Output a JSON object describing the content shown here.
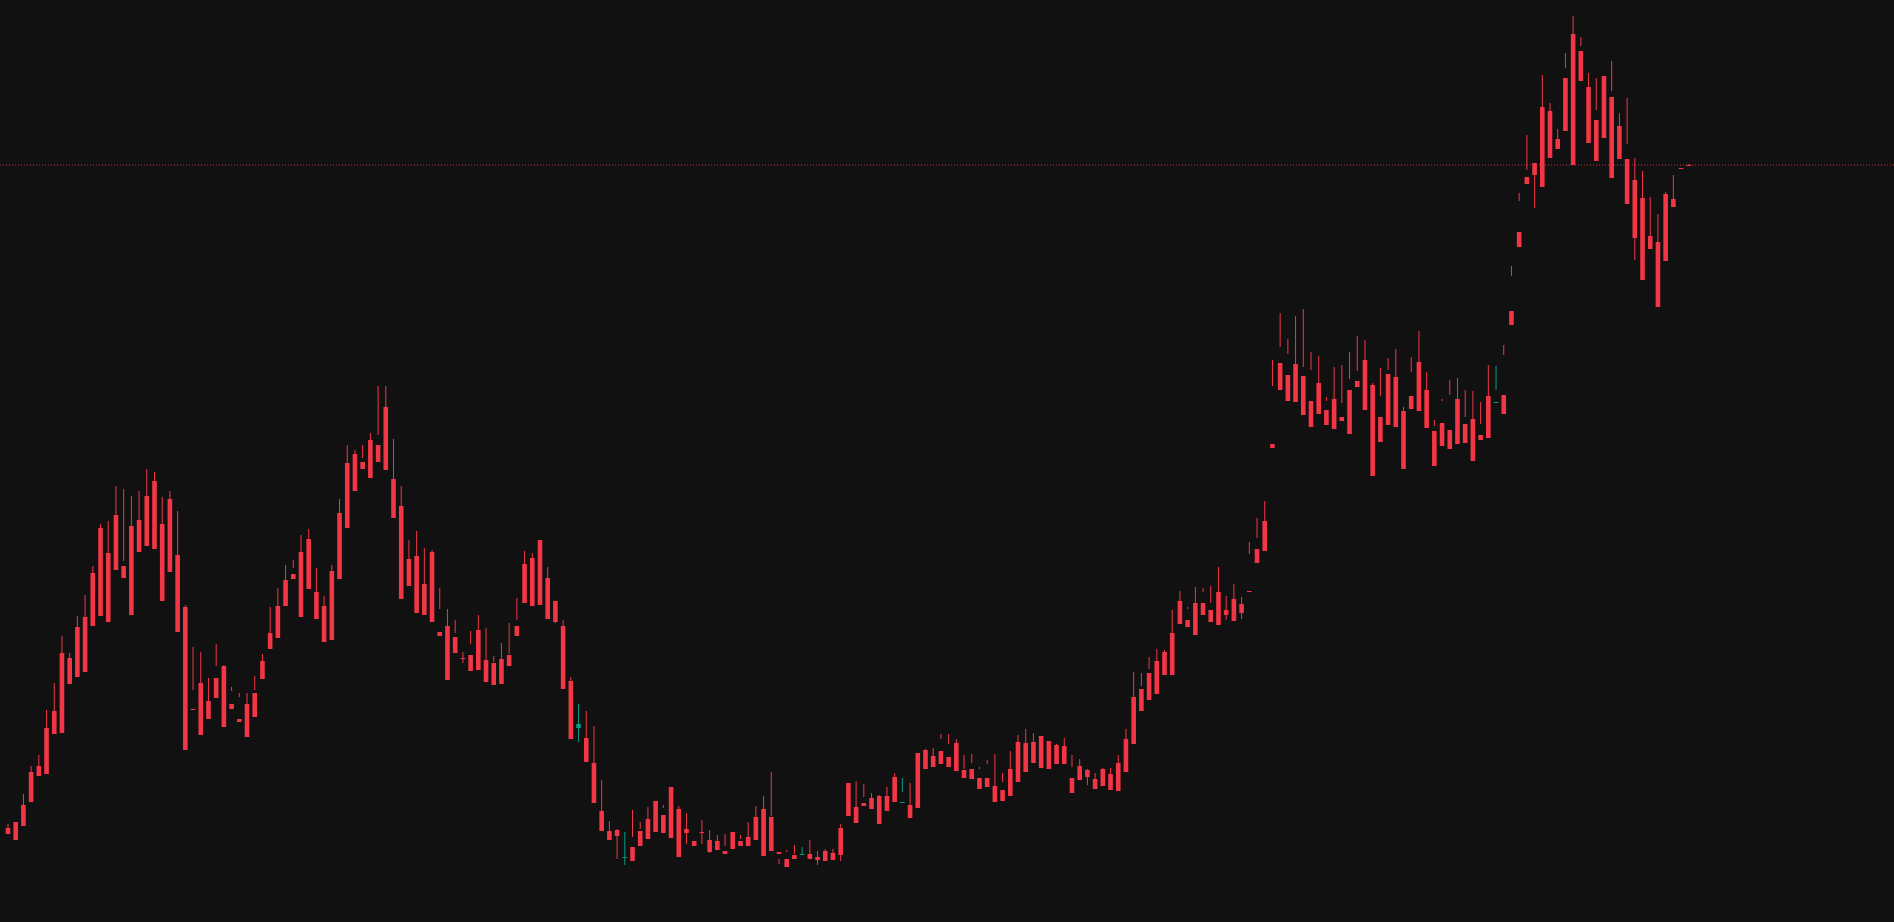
{
  "colors": {
    "background": "#111112",
    "up": "#089981",
    "down": "#f23645",
    "price_line": "#f23645"
  },
  "chart_data": {
    "type": "candlestick",
    "title": "",
    "xlabel": "",
    "ylabel": "",
    "y_range": [
      0,
      922
    ],
    "grid": false,
    "legend": "none",
    "price_line": {
      "value": 757,
      "style": "dotted"
    },
    "candles": [
      [
        94,
        98,
        90,
        88
      ],
      [
        100,
        99,
        93,
        82
      ],
      [
        117,
        128,
        99,
        96
      ],
      [
        150,
        156,
        127,
        120
      ],
      [
        156,
        167,
        153,
        146
      ],
      [
        194,
        212,
        157,
        148
      ],
      [
        211,
        239,
        198,
        188
      ],
      [
        269,
        286,
        212,
        189
      ],
      [
        264,
        269,
        251,
        238
      ],
      [
        295,
        306,
        264,
        245
      ],
      [
        305,
        327,
        294,
        250
      ],
      [
        349,
        356,
        316,
        296
      ],
      [
        394,
        398,
        352,
        306
      ],
      [
        369,
        401,
        343,
        300
      ],
      [
        407,
        436,
        372,
        352
      ],
      [
        356,
        433,
        361,
        344
      ],
      [
        396,
        426,
        363,
        307
      ],
      [
        402,
        431,
        395,
        370
      ],
      [
        426,
        453,
        417,
        376
      ],
      [
        441,
        450,
        405,
        373
      ],
      [
        398,
        425,
        359,
        321
      ],
      [
        423,
        431,
        374,
        350
      ],
      [
        367,
        411,
        332,
        290
      ],
      [
        315,
        317,
        190,
        172
      ],
      [
        213,
        275,
        232,
        212
      ],
      [
        239,
        270,
        237,
        187
      ],
      [
        221,
        244,
        215,
        203
      ],
      [
        244,
        278,
        256,
        224
      ],
      [
        256,
        257,
        224,
        195
      ],
      [
        218,
        235,
        231,
        213
      ],
      [
        203,
        229,
        225,
        200
      ],
      [
        218,
        229,
        212,
        185
      ],
      [
        229,
        246,
        232,
        205
      ],
      [
        261,
        268,
        245,
        243
      ],
      [
        289,
        315,
        281,
        273
      ],
      [
        316,
        334,
        308,
        284
      ],
      [
        342,
        357,
        327,
        316
      ],
      [
        348,
        362,
        354,
        343
      ],
      [
        370,
        387,
        363,
        305
      ],
      [
        383,
        393,
        349,
        333
      ],
      [
        330,
        354,
        318,
        303
      ],
      [
        316,
        326,
        292,
        280
      ],
      [
        351,
        357,
        308,
        282
      ],
      [
        409,
        423,
        354,
        343
      ],
      [
        459,
        477,
        404,
        394
      ],
      [
        468,
        472,
        456,
        431
      ],
      [
        460,
        477,
        464,
        453
      ],
      [
        482,
        489,
        458,
        444
      ],
      [
        477,
        536,
        487,
        460
      ],
      [
        515,
        536,
        468,
        452
      ],
      [
        443,
        483,
        442,
        404
      ],
      [
        416,
        436,
        364,
        323
      ],
      [
        363,
        382,
        356,
        336
      ],
      [
        366,
        391,
        324,
        309
      ],
      [
        338,
        374,
        326,
        307
      ],
      [
        370,
        372,
        324,
        300
      ],
      [
        290,
        313,
        334,
        286
      ],
      [
        296,
        313,
        285,
        242
      ],
      [
        285,
        302,
        289,
        269
      ],
      [
        264,
        270,
        259,
        263
      ],
      [
        267,
        291,
        278,
        251
      ],
      [
        292,
        307,
        269,
        252
      ],
      [
        262,
        294,
        253,
        240
      ],
      [
        259,
        266,
        260,
        237
      ],
      [
        263,
        279,
        262,
        238
      ],
      [
        267,
        268,
        299,
        256
      ],
      [
        296,
        324,
        302,
        286
      ],
      [
        358,
        371,
        332,
        319
      ],
      [
        364,
        369,
        325,
        316
      ],
      [
        382,
        369,
        344,
        317
      ],
      [
        344,
        355,
        321,
        303
      ],
      [
        321,
        319,
        299,
        300
      ],
      [
        296,
        302,
        283,
        233
      ],
      [
        241,
        245,
        193,
        183
      ],
      [
        194,
        218,
        180,
        198
      ],
      [
        184,
        211,
        165,
        160
      ],
      [
        159,
        196,
        121,
        119
      ],
      [
        111,
        142,
        100,
        91
      ],
      [
        91,
        101,
        86,
        82
      ],
      [
        92,
        93,
        63,
        86
      ],
      [
        65,
        90,
        57,
        65
      ],
      [
        75,
        112,
        85,
        61
      ],
      [
        91,
        100,
        93,
        76
      ],
      [
        103,
        115,
        100,
        83
      ],
      [
        121,
        121,
        107,
        90
      ],
      [
        107,
        117,
        114,
        89
      ],
      [
        135,
        134,
        107,
        84
      ],
      [
        113,
        116,
        96,
        65
      ],
      [
        93,
        109,
        78,
        89
      ],
      [
        81,
        79,
        80,
        76
      ],
      [
        90,
        102,
        78,
        89
      ],
      [
        82,
        92,
        69,
        70
      ],
      [
        81,
        87,
        74,
        72
      ],
      [
        71,
        88,
        76,
        68
      ],
      [
        90,
        87,
        73,
        73
      ],
      [
        81,
        83,
        87,
        76
      ],
      [
        85,
        100,
        80,
        76
      ],
      [
        105,
        116,
        90,
        82
      ],
      [
        113,
        126,
        103,
        66
      ],
      [
        105,
        150,
        106,
        71
      ],
      [
        70,
        58,
        63,
        68
      ],
      [
        63,
        72,
        70,
        55
      ],
      [
        67,
        77,
        68,
        63
      ],
      [
        67,
        75,
        68,
        68
      ],
      [
        68,
        82,
        66,
        63
      ],
      [
        65,
        71,
        57,
        62
      ],
      [
        71,
        73,
        62,
        61
      ],
      [
        69,
        73,
        62,
        62
      ],
      [
        94,
        98,
        61,
        67
      ],
      [
        139,
        114,
        112,
        106
      ],
      [
        115,
        141,
        108,
        99
      ],
      [
        119,
        138,
        125,
        116
      ],
      [
        124,
        121,
        129,
        113
      ],
      [
        126,
        127,
        120,
        98
      ],
      [
        126,
        135,
        125,
        111
      ],
      [
        145,
        149,
        141,
        120
      ],
      [
        119,
        144,
        130,
        120
      ],
      [
        117,
        139,
        112,
        104
      ],
      [
        169,
        163,
        117,
        114
      ],
      [
        172,
        167,
        173,
        153
      ],
      [
        166,
        161,
        174,
        155
      ],
      [
        171,
        188,
        183,
        158
      ],
      [
        165,
        188,
        178,
        155
      ],
      [
        179,
        183,
        161,
        151
      ],
      [
        152,
        167,
        153,
        144
      ],
      [
        153,
        168,
        159,
        143
      ],
      [
        144,
        155,
        153,
        133
      ],
      [
        144,
        162,
        158,
        135
      ],
      [
        136,
        168,
        133,
        120
      ],
      [
        132,
        149,
        140,
        121
      ],
      [
        153,
        171,
        144,
        126
      ],
      [
        180,
        187,
        162,
        140
      ],
      [
        179,
        193,
        165,
        150
      ],
      [
        180,
        189,
        169,
        159
      ],
      [
        186,
        176,
        170,
        154
      ],
      [
        181,
        180,
        165,
        153
      ],
      [
        177,
        178,
        162,
        158
      ],
      [
        176,
        163,
        184,
        158
      ],
      [
        144,
        167,
        155,
        129
      ],
      [
        156,
        163,
        156,
        142
      ],
      [
        152,
        153,
        137,
        145
      ],
      [
        143,
        149,
        135,
        133
      ],
      [
        153,
        154,
        138,
        136
      ],
      [
        148,
        154,
        146,
        132
      ],
      [
        159,
        167,
        149,
        131
      ],
      [
        183,
        193,
        166,
        150
      ],
      [
        225,
        250,
        209,
        178
      ],
      [
        233,
        249,
        236,
        211
      ],
      [
        249,
        265,
        253,
        222
      ],
      [
        261,
        273,
        259,
        228
      ],
      [
        270,
        268,
        272,
        247
      ],
      [
        289,
        312,
        286,
        247
      ],
      [
        321,
        331,
        300,
        298
      ],
      [
        302,
        315,
        313,
        295
      ],
      [
        319,
        335,
        305,
        287
      ],
      [
        319,
        334,
        330,
        307
      ],
      [
        312,
        336,
        319,
        300
      ],
      [
        330,
        355,
        312,
        297
      ],
      [
        312,
        326,
        302,
        307
      ],
      [
        323,
        338,
        309,
        301
      ],
      [
        318,
        303,
        325,
        309
      ],
      [
        331,
        380,
        368,
        330
      ],
      [
        373,
        404,
        384,
        359
      ],
      [
        401,
        421,
        392,
        371
      ],
      [
        478,
        536,
        562,
        474
      ],
      [
        559,
        609,
        575,
        532
      ],
      [
        547,
        583,
        568,
        521
      ],
      [
        558,
        606,
        547,
        520
      ],
      [
        546,
        613,
        555,
        507
      ],
      [
        521,
        570,
        552,
        495
      ],
      [
        539,
        566,
        524,
        508
      ],
      [
        512,
        525,
        521,
        497
      ],
      [
        523,
        555,
        502,
        493
      ],
      [
        505,
        557,
        519,
        501
      ],
      [
        532,
        570,
        543,
        488
      ],
      [
        541,
        586,
        551,
        535
      ],
      [
        562,
        582,
        531,
        512
      ],
      [
        537,
        539,
        512,
        446
      ],
      [
        505,
        526,
        554,
        480
      ],
      [
        548,
        564,
        552,
        497
      ],
      [
        545,
        573,
        525,
        495
      ],
      [
        511,
        500,
        515,
        453
      ],
      [
        526,
        550,
        565,
        513
      ],
      [
        560,
        591,
        540,
        511
      ],
      [
        532,
        550,
        497,
        494
      ],
      [
        491,
        496,
        502,
        456
      ],
      [
        499,
        521,
        523,
        476
      ],
      [
        492,
        542,
        527,
        473
      ],
      [
        523,
        544,
        518,
        478
      ],
      [
        498,
        532,
        505,
        479
      ],
      [
        503,
        531,
        490,
        461
      ],
      [
        487,
        498,
        520,
        482
      ],
      [
        526,
        557,
        519,
        484
      ],
      [
        520,
        556,
        532,
        520
      ],
      [
        527,
        577,
        567,
        508
      ],
      [
        611,
        646,
        656,
        597
      ],
      [
        690,
        729,
        721,
        675
      ],
      [
        745,
        787,
        752,
        738
      ],
      [
        759,
        759,
        714,
        747
      ],
      [
        815,
        847,
        776,
        735
      ],
      [
        811,
        819,
        781,
        764
      ],
      [
        783,
        793,
        773,
        773
      ],
      [
        844,
        869,
        854,
        791
      ],
      [
        888,
        906,
        808,
        757
      ],
      [
        871,
        876,
        885,
        841
      ],
      [
        835,
        849,
        833,
        779
      ],
      [
        802,
        812,
        844,
        761
      ],
      [
        846,
        844,
        813,
        784
      ],
      [
        825,
        861,
        831,
        744
      ],
      [
        796,
        809,
        779,
        763
      ],
      [
        763,
        824,
        778,
        718
      ],
      [
        742,
        764,
        662,
        684
      ],
      [
        724,
        751,
        667,
        642
      ],
      [
        686,
        725,
        686,
        673
      ],
      [
        680,
        708,
        649,
        615
      ],
      [
        728,
        730,
        684,
        661
      ],
      [
        723,
        721,
        747,
        715
      ],
      [
        754,
        761,
        761,
        753
      ],
      [
        757,
        758,
        756,
        756
      ]
    ]
  }
}
